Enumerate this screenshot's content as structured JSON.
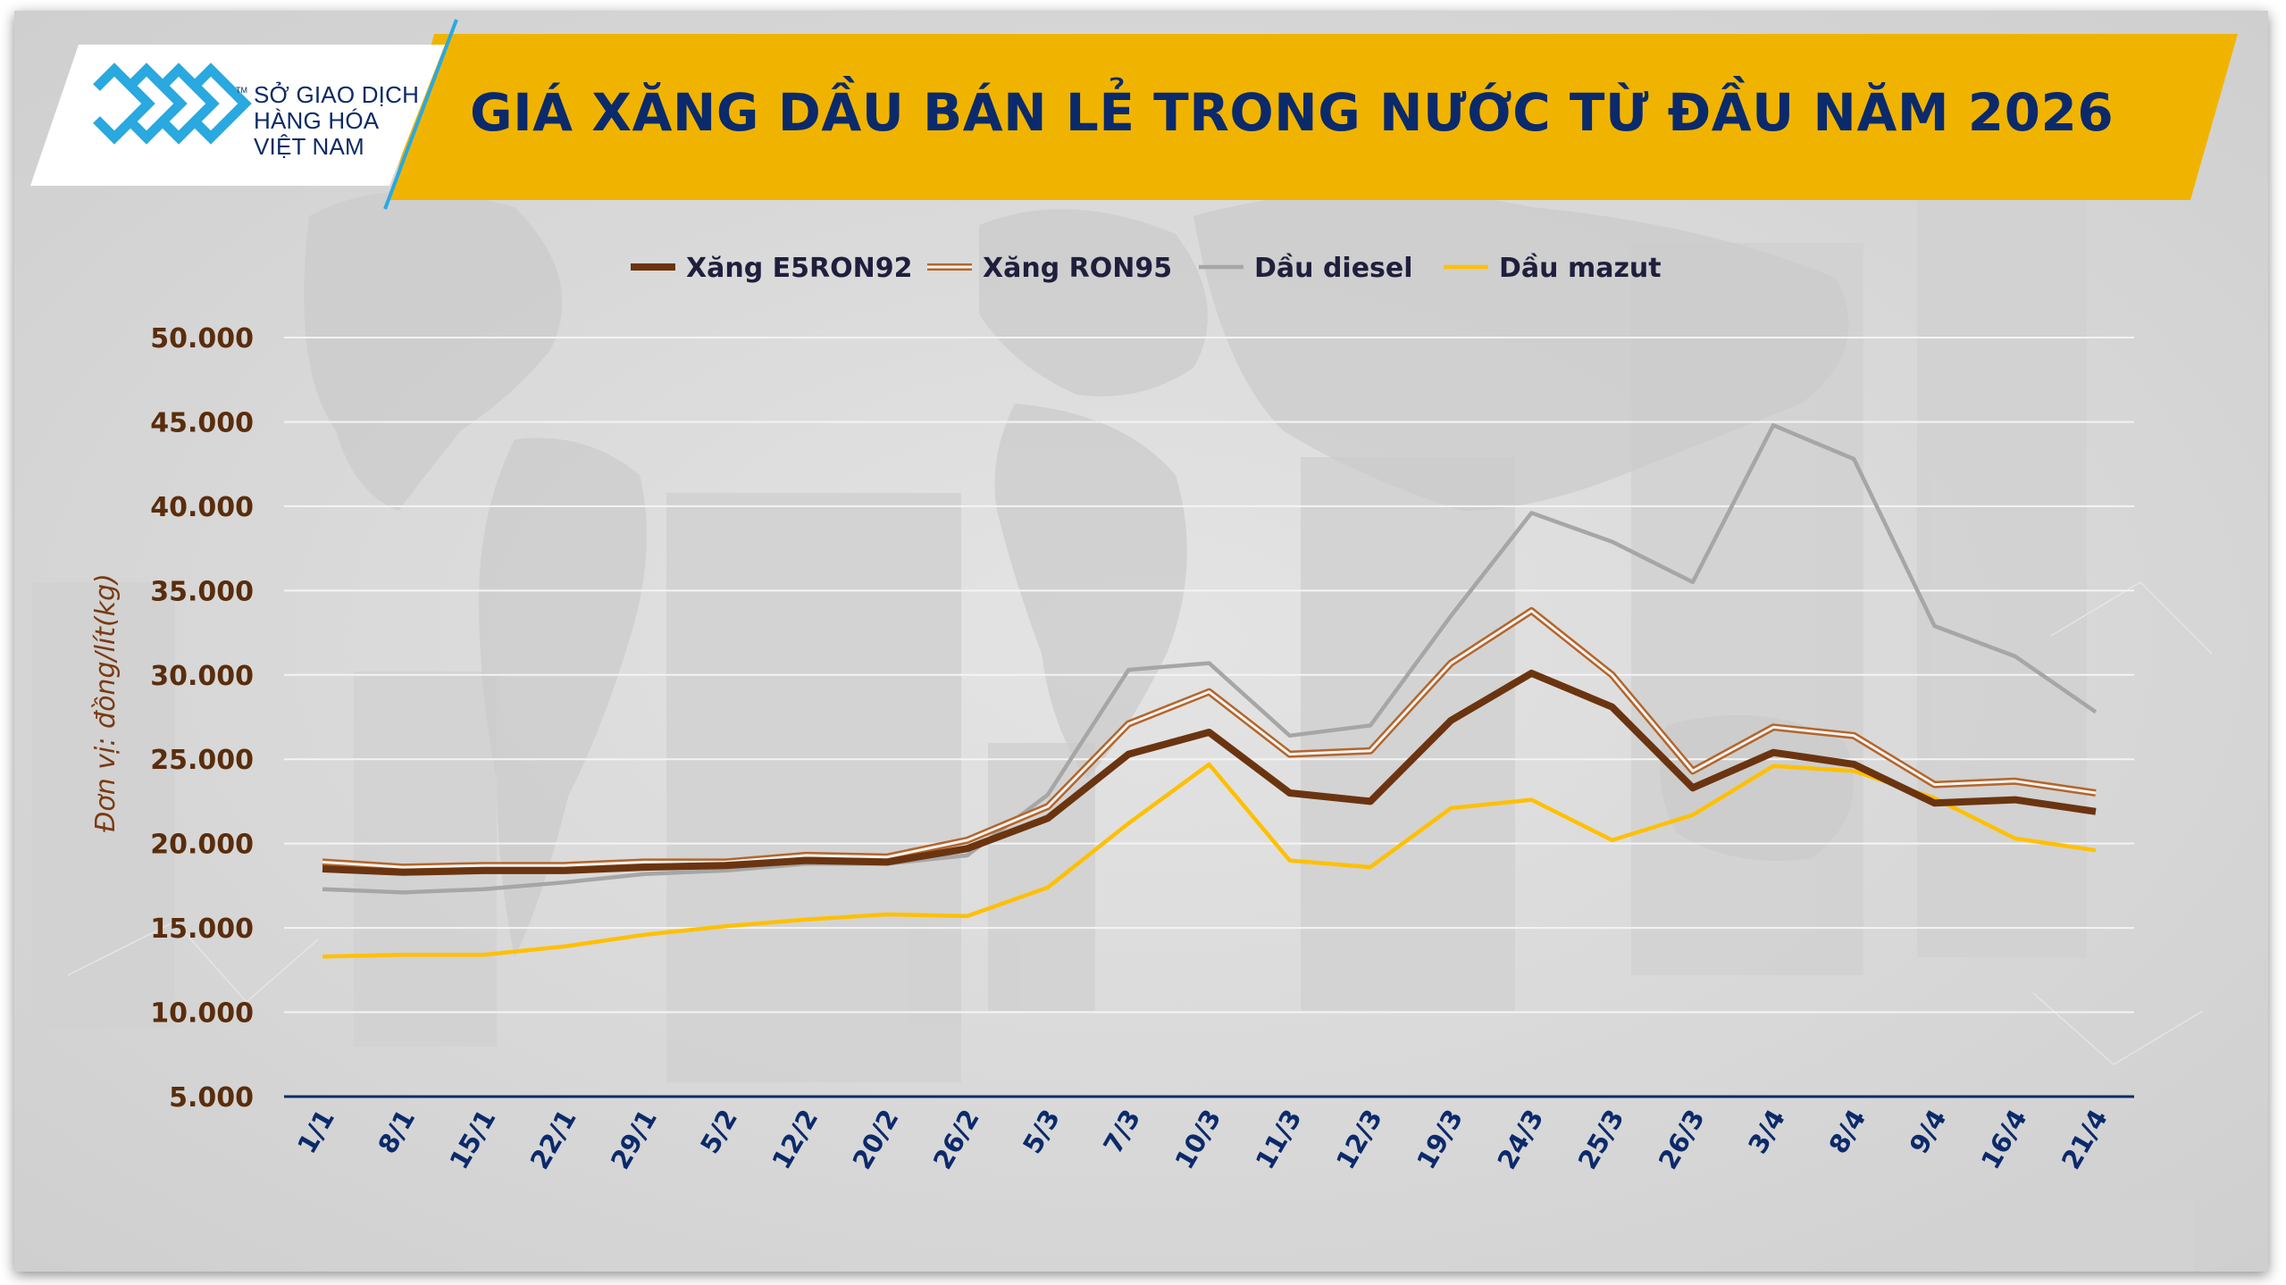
{
  "logo": {
    "line1": "SỞ GIAO DỊCH",
    "line2": "HÀNG HÓA",
    "line3": "VIỆT NAM",
    "tm": "TM"
  },
  "title": "GIÁ XĂNG DẦU BÁN LẺ TRONG NƯỚC TỪ ĐẦU NĂM 2026",
  "colors": {
    "header_yellow": "#f0b400",
    "title_navy": "#0b2a6b",
    "logo_blue": "#29a9e0",
    "e5ron92": "#6b3410",
    "ron95_outline": "#b5652a",
    "diesel": "#a6a6a6",
    "mazut": "#ffc000",
    "axis_line": "#0b2a6b",
    "grid": "#f5f5f5"
  },
  "chart_data": {
    "type": "line",
    "ylabel": "Đơn vị: đồng/lít(kg)",
    "xlabel": "",
    "ylim": [
      5000,
      50000
    ],
    "yticks": [
      5000,
      10000,
      15000,
      20000,
      25000,
      30000,
      35000,
      40000,
      45000,
      50000
    ],
    "ytick_labels": [
      "5.000",
      "10.000",
      "15.000",
      "20.000",
      "25.000",
      "30.000",
      "35.000",
      "40.000",
      "45.000",
      "50.000"
    ],
    "grid": "horizontal",
    "legend_position": "top-center",
    "categories": [
      "1/1",
      "8/1",
      "15/1",
      "22/1",
      "29/1",
      "5/2",
      "12/2",
      "20/2",
      "26/2",
      "5/3",
      "7/3",
      "10/3",
      "11/3",
      "12/3",
      "19/3",
      "24/3",
      "25/3",
      "26/3",
      "3/4",
      "8/4",
      "9/4",
      "16/4",
      "21/4"
    ],
    "series": [
      {
        "name": "Xăng E5RON92",
        "style": "solid-thick",
        "color": "#6b3410",
        "values": [
          18500,
          18300,
          18400,
          18400,
          18600,
          18700,
          19000,
          18900,
          19700,
          21500,
          25300,
          26600,
          23000,
          22500,
          27300,
          30100,
          28100,
          23300,
          25400,
          24700,
          22400,
          22600,
          21900
        ]
      },
      {
        "name": "Xăng RON95",
        "style": "outlined",
        "color": "#b5652a",
        "values": [
          18900,
          18600,
          18700,
          18700,
          18900,
          18900,
          19300,
          19200,
          20200,
          22200,
          27100,
          29000,
          25300,
          25500,
          30700,
          33800,
          30000,
          24300,
          26900,
          26400,
          23500,
          23700,
          23000
        ]
      },
      {
        "name": "Dầu diesel",
        "style": "solid",
        "color": "#a6a6a6",
        "values": [
          17300,
          17100,
          17300,
          17700,
          18200,
          18400,
          18800,
          18800,
          19300,
          22900,
          30300,
          30700,
          26400,
          27000,
          33500,
          39600,
          37900,
          35500,
          44800,
          42800,
          32900,
          31100,
          27800
        ]
      },
      {
        "name": "Dầu mazut",
        "style": "solid",
        "color": "#ffc000",
        "values": [
          13300,
          13400,
          13400,
          13900,
          14600,
          15100,
          15500,
          15800,
          15700,
          17400,
          21200,
          24700,
          19000,
          18600,
          22100,
          22600,
          20200,
          21700,
          24600,
          24300,
          22700,
          20300,
          19600
        ]
      }
    ]
  }
}
